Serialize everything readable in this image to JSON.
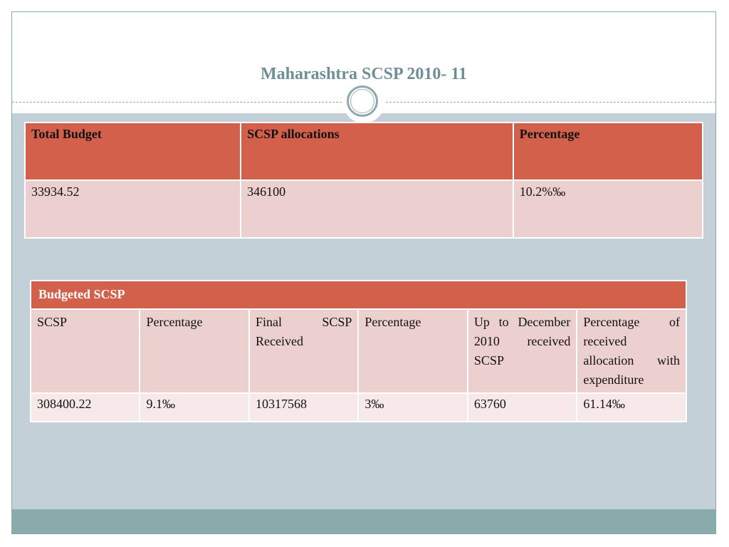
{
  "slide": {
    "title": "Maharashtra SCSP 2010- 11"
  },
  "table1": {
    "headers": [
      "Total Budget",
      "SCSP allocations",
      "Percentage"
    ],
    "row": [
      "33934.52",
      "346100",
      "10.2%‰"
    ]
  },
  "table2": {
    "title": "Budgeted  SCSP",
    "headers": [
      "SCSP",
      "Percentage",
      "Final SCSP Received",
      "Percentage",
      "Up to December 2010 received SCSP",
      "Percentage of received allocation with expenditure"
    ],
    "row": [
      "308400.22",
      "9.1‰",
      "10317568",
      "3‰",
      "63760",
      "61.14‰"
    ]
  },
  "colors": {
    "header_accent": "#d2604a",
    "cell_fill": "#ecd0cf",
    "background": "#c4d0d8",
    "footer": "#8aabab",
    "title_text": "#6e8f96"
  }
}
